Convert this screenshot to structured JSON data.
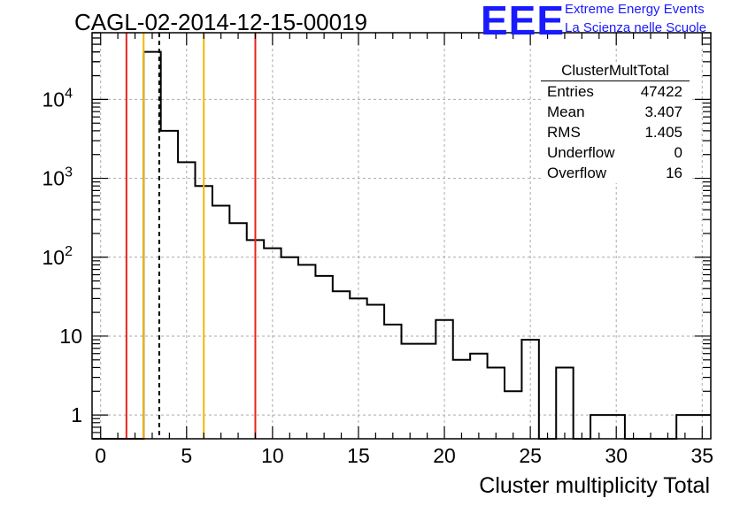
{
  "chart_data": {
    "type": "histogram",
    "title": "CAGL-02-2014-12-15-00019",
    "xlabel": "Cluster multiplicity Total",
    "ylabel": "",
    "xlim": [
      -0.5,
      35.5
    ],
    "ylim": [
      0.5,
      70000
    ],
    "yscale": "log",
    "grid": true,
    "bin_edges": [
      -0.5,
      35.5
    ],
    "bin_width": 1,
    "bin_centers": [
      0,
      1,
      2,
      3,
      4,
      5,
      6,
      7,
      8,
      9,
      10,
      11,
      12,
      13,
      14,
      15,
      16,
      17,
      18,
      19,
      20,
      21,
      22,
      23,
      24,
      25,
      26,
      27,
      28,
      29,
      30,
      31,
      32,
      33,
      34,
      35
    ],
    "counts": [
      0,
      0,
      0,
      40000,
      4000,
      1600,
      800,
      450,
      270,
      165,
      130,
      100,
      80,
      58,
      37,
      30,
      25,
      14,
      8,
      8,
      16,
      5,
      6,
      4,
      2,
      9,
      0,
      4,
      0,
      1,
      1,
      0,
      0,
      0,
      1,
      1
    ],
    "x_ticks": [
      "0",
      "5",
      "10",
      "15",
      "20",
      "25",
      "30",
      "35"
    ],
    "y_ticks": [
      {
        "value": 1,
        "label": "1"
      },
      {
        "value": 10,
        "label": "10"
      },
      {
        "value": 100,
        "label": "10",
        "sup": "2"
      },
      {
        "value": 1000,
        "label": "10",
        "sup": "3"
      },
      {
        "value": 10000,
        "label": "10",
        "sup": "4"
      }
    ],
    "vertical_lines": [
      {
        "x": 1.5,
        "color": "#e8231e",
        "style": "solid"
      },
      {
        "x": 2.5,
        "color": "#f5b800",
        "style": "solid"
      },
      {
        "x": 3.407,
        "color": "#000000",
        "style": "dashed"
      },
      {
        "x": 6.0,
        "color": "#f5b800",
        "style": "solid"
      },
      {
        "x": 9.0,
        "color": "#e8231e",
        "style": "solid"
      }
    ],
    "stats": {
      "name": "ClusterMultTotal",
      "rows": [
        {
          "label": "Entries",
          "value": "47422"
        },
        {
          "label": "Mean",
          "value": "3.407"
        },
        {
          "label": "RMS",
          "value": "1.405"
        },
        {
          "label": "Underflow",
          "value": "0"
        },
        {
          "label": "Overflow",
          "value": "16"
        }
      ]
    }
  },
  "logo": {
    "mark": "EEE",
    "line1": "Extreme Energy Events",
    "line2": "La Scienza nelle Scuole"
  }
}
